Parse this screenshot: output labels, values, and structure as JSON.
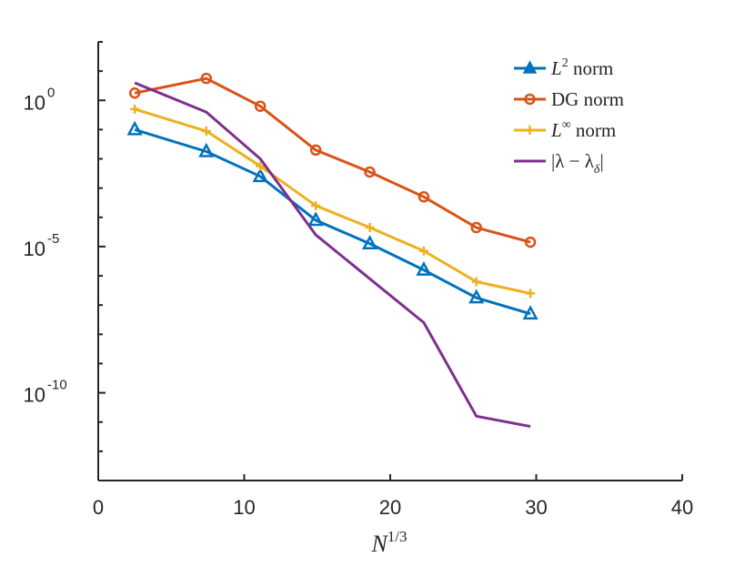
{
  "chart_data": {
    "type": "line",
    "title": "",
    "xlabel": "N^{1/3}",
    "ylabel": "",
    "yscale": "log",
    "xlim": [
      0,
      40
    ],
    "ylim_log10": [
      -13,
      2
    ],
    "x_ticks": [
      0,
      10,
      20,
      30,
      40
    ],
    "x_tick_labels": [
      "0",
      "10",
      "20",
      "30",
      "40"
    ],
    "y_tick_labels": [
      {
        "exp": 0,
        "base": "10",
        "sup": "0"
      },
      {
        "exp": -5,
        "base": "10",
        "sup": "-5"
      },
      {
        "exp": -10,
        "base": "10",
        "sup": "-10"
      }
    ],
    "legend_position": "top-right",
    "x": [
      2.5,
      7.4,
      11.1,
      14.9,
      18.6,
      22.3,
      25.9,
      29.6
    ],
    "series": [
      {
        "name": "L2 norm",
        "legend_main": "L",
        "legend_sup": "2",
        "legend_suffix": " norm",
        "color": "#0072BD",
        "marker": "triangle",
        "log10_values": [
          -1.0,
          -1.75,
          -2.6,
          -4.1,
          -4.9,
          -5.8,
          -6.75,
          -7.3
        ]
      },
      {
        "name": "DG norm",
        "legend_main": "DG norm",
        "legend_sup": "",
        "legend_suffix": "",
        "color": "#D95319",
        "marker": "circle",
        "log10_values": [
          0.25,
          0.75,
          -0.2,
          -1.7,
          -2.45,
          -3.3,
          -4.35,
          -4.85
        ]
      },
      {
        "name": "L∞ norm",
        "legend_main": "L",
        "legend_sup": "∞",
        "legend_suffix": " norm",
        "color": "#EDB120",
        "marker": "plus",
        "log10_values": [
          -0.3,
          -1.05,
          -2.25,
          -3.6,
          -4.35,
          -5.15,
          -6.2,
          -6.6
        ]
      },
      {
        "name": "|λ − λδ|",
        "legend_main": "|λ − λ",
        "legend_sup": "",
        "legend_sub": "δ",
        "legend_suffix": "|",
        "color": "#7E2F8E",
        "marker": "none",
        "x": [
          2.5,
          7.4,
          11.1,
          14.9,
          18.6,
          22.3,
          25.9,
          29.6
        ],
        "log10_values": [
          0.6,
          -0.4,
          -2.0,
          -4.6,
          -6.1,
          -7.6,
          -10.8,
          -11.15
        ]
      }
    ]
  }
}
